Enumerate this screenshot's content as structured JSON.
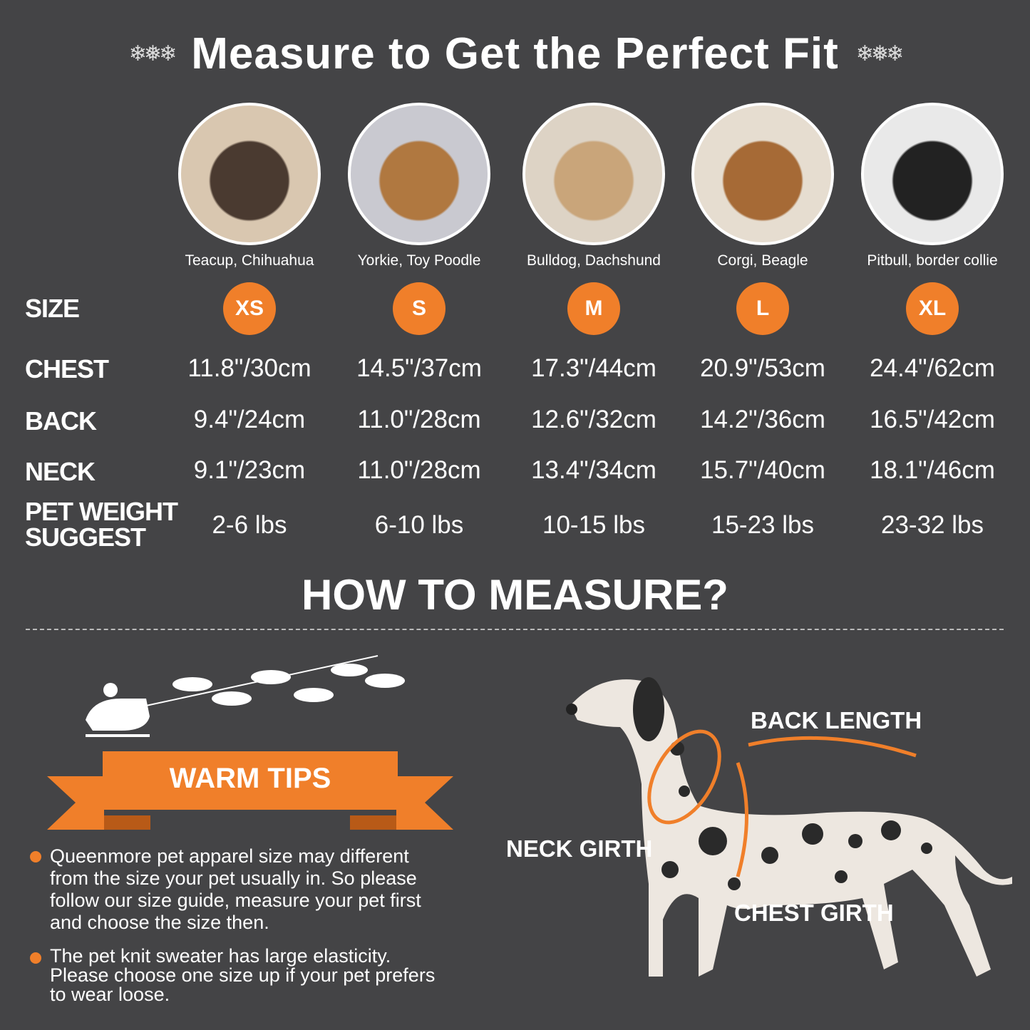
{
  "title": "Measure to Get the Perfect Fit",
  "decor_icon": "snowflake-icon",
  "accent_color": "#f07f2a",
  "background_color": "#444446",
  "columns": [
    {
      "breeds": "Teacup, Chihuahua",
      "size": "XS",
      "chest": "11.8\"/30cm",
      "back": "9.4\"/24cm",
      "neck": "9.1\"/23cm",
      "weight": "2-6 lbs"
    },
    {
      "breeds": "Yorkie, Toy Poodle",
      "size": "S",
      "chest": "14.5\"/37cm",
      "back": "11.0\"/28cm",
      "neck": "11.0\"/28cm",
      "weight": "6-10 lbs"
    },
    {
      "breeds": "Bulldog, Dachshund",
      "size": "M",
      "chest": "17.3\"/44cm",
      "back": "12.6\"/32cm",
      "neck": "13.4\"/34cm",
      "weight": "10-15 lbs"
    },
    {
      "breeds": "Corgi, Beagle",
      "size": "L",
      "chest": "20.9\"/53cm",
      "back": "14.2\"/36cm",
      "neck": "15.7\"/40cm",
      "weight": "15-23 lbs"
    },
    {
      "breeds": "Pitbull, border collie",
      "size": "XL",
      "chest": "24.4\"/62cm",
      "back": "16.5\"/42cm",
      "neck": "18.1\"/46cm",
      "weight": "23-32 lbs"
    }
  ],
  "row_labels": {
    "size": "SIZE",
    "chest": "CHEST",
    "back": "BACK",
    "neck": "NECK",
    "weight_1": "PET WEIGHT",
    "weight_2": "SUGGEST"
  },
  "how_to": {
    "title": "HOW TO MEASURE?",
    "back_length": "BACK LENGTH",
    "neck_girth": "NECK GIRTH",
    "chest_girth": "CHEST GIRTH"
  },
  "warm_tips": {
    "title": "WARM TIPS",
    "tip1": [
      "Queenmore pet apparel size may different",
      "from the size your pet usually in. So please",
      "follow our size guide, measure your pet first",
      "and choose the size then."
    ],
    "tip2": [
      "The pet knit sweater has large elasticity.",
      "Please choose one size up if your pet prefers",
      "to wear loose."
    ]
  }
}
